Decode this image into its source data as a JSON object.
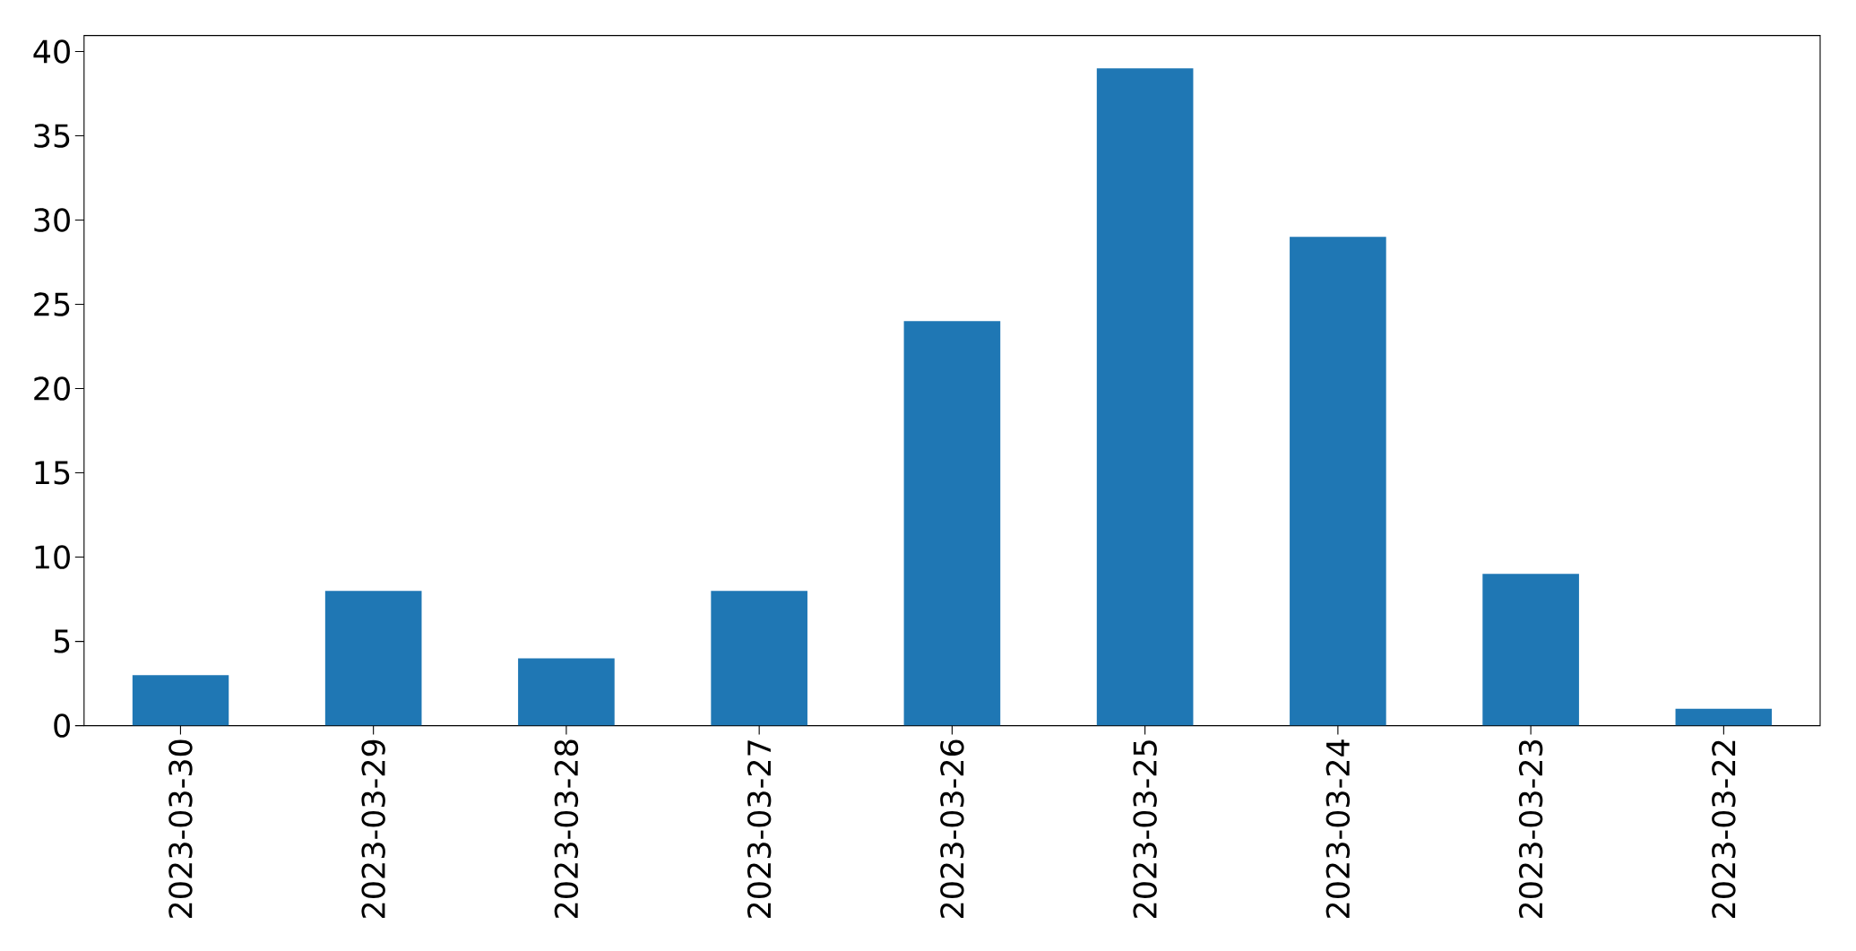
{
  "chart_data": {
    "type": "bar",
    "categories": [
      "2023-03-30",
      "2023-03-29",
      "2023-03-28",
      "2023-03-27",
      "2023-03-26",
      "2023-03-25",
      "2023-03-24",
      "2023-03-23",
      "2023-03-22"
    ],
    "values": [
      3,
      8,
      4,
      8,
      24,
      39,
      29,
      9,
      1
    ],
    "color": "#1f77b4",
    "ylim": [
      0,
      40.95
    ],
    "yticks": [
      0,
      5,
      10,
      15,
      20,
      25,
      30,
      35,
      40
    ]
  }
}
